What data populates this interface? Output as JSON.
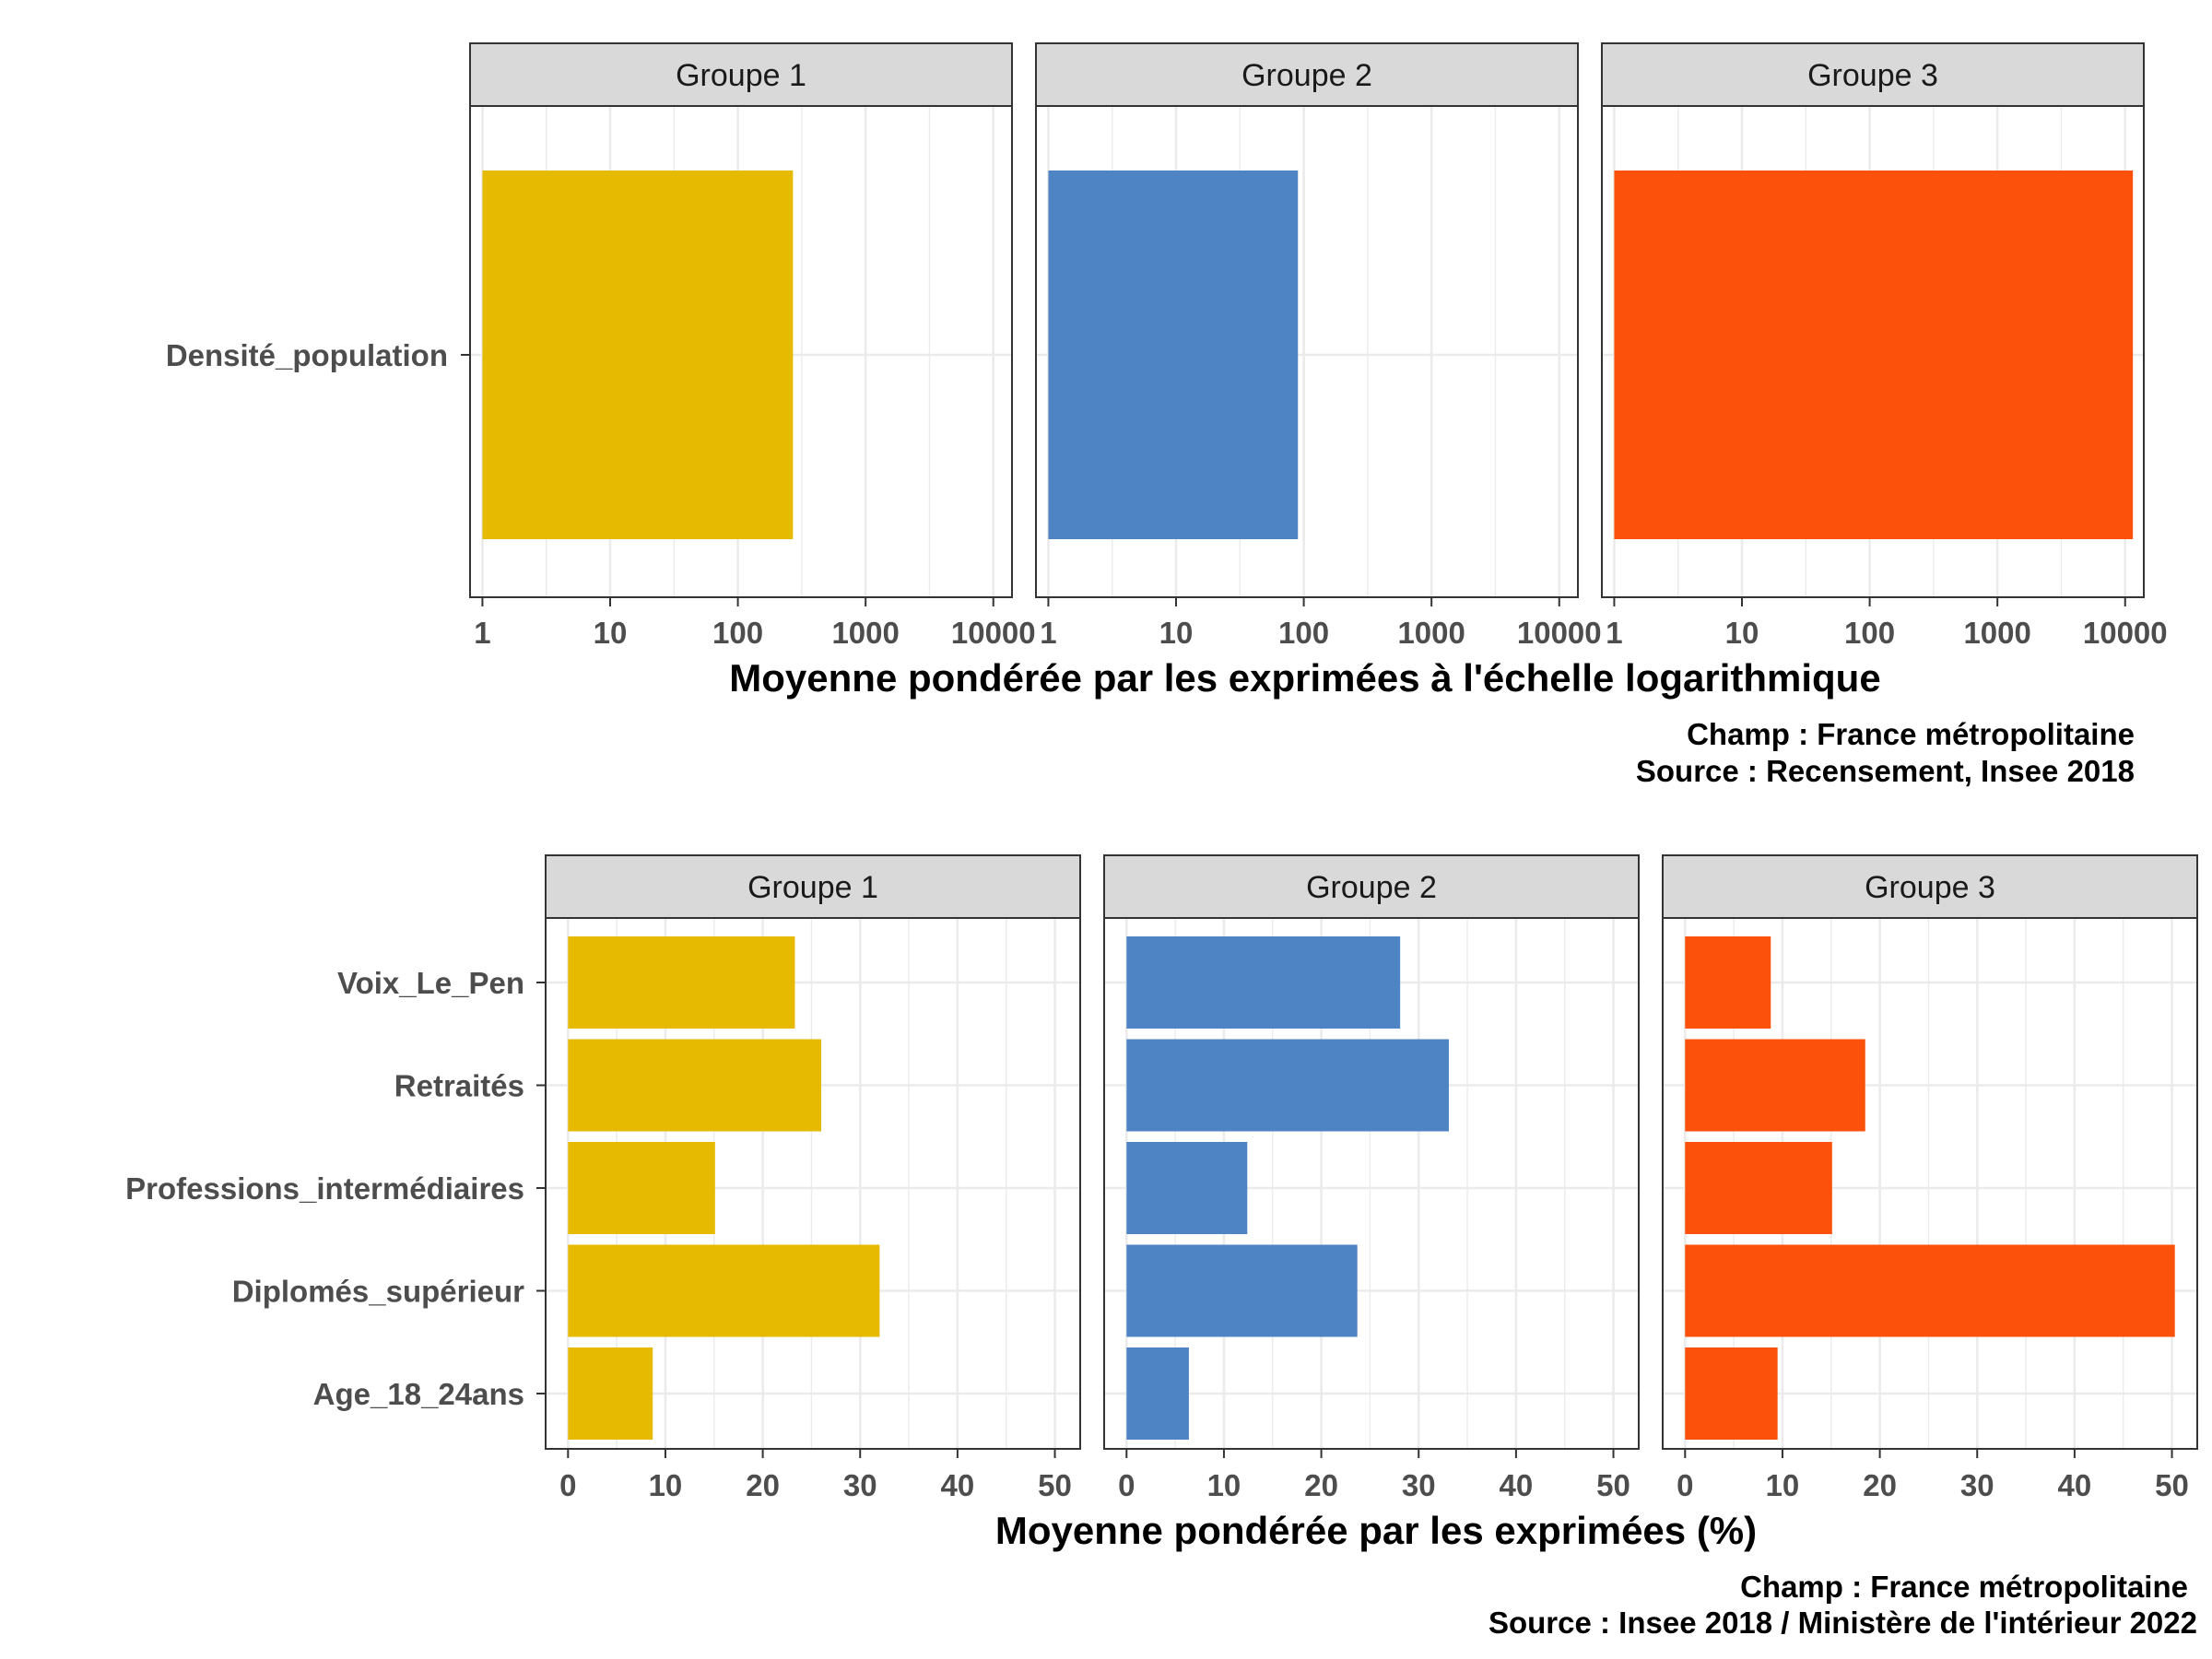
{
  "chart_data": [
    {
      "type": "bar",
      "orientation": "horizontal",
      "facets": [
        "Groupe 1",
        "Groupe 2",
        "Groupe 3"
      ],
      "categories": [
        "Densité_population"
      ],
      "series": [
        {
          "facet": "Groupe 1",
          "values": [
            270
          ],
          "color": "#E6BA00"
        },
        {
          "facet": "Groupe 2",
          "values": [
            90
          ],
          "color": "#4F84C4"
        },
        {
          "facet": "Groupe 3",
          "values": [
            11500
          ],
          "color": "#FC510B"
        }
      ],
      "x_scale": "log10",
      "xlim": [
        0.8,
        14000
      ],
      "x_ticks": [
        1,
        10,
        100,
        1000,
        10000
      ],
      "x_tick_labels": [
        "1",
        "10",
        "100",
        "1000",
        "10000"
      ],
      "xlabel": "Moyenne pondérée par les exprimées à l'échelle logarithmique",
      "caption": [
        "Champ : France métropolitaine",
        "Source : Recensement, Insee 2018"
      ],
      "grid": true,
      "legend": "none"
    },
    {
      "type": "bar",
      "orientation": "horizontal",
      "facets": [
        "Groupe 1",
        "Groupe 2",
        "Groupe 3"
      ],
      "categories": [
        "Voix_Le_Pen",
        "Retraités",
        "Professions_intermédiaires",
        "Diplomés_supérieur",
        "Age_18_24ans"
      ],
      "series": [
        {
          "facet": "Groupe 1",
          "values": [
            23.3,
            26.0,
            15.1,
            32.0,
            8.7
          ],
          "color": "#E6BA00"
        },
        {
          "facet": "Groupe 2",
          "values": [
            28.1,
            33.1,
            12.4,
            23.7,
            6.4
          ],
          "color": "#4F84C4"
        },
        {
          "facet": "Groupe 3",
          "values": [
            8.8,
            18.5,
            15.1,
            50.3,
            9.5
          ],
          "color": "#FC510B"
        }
      ],
      "x_scale": "linear",
      "xlim": [
        -2.3,
        52.6
      ],
      "x_ticks": [
        0,
        10,
        20,
        30,
        40,
        50
      ],
      "x_tick_labels": [
        "0",
        "10",
        "20",
        "30",
        "40",
        "50"
      ],
      "xlabel": "Moyenne pondérée par les exprimées (%)",
      "caption": [
        "Champ : France métropolitaine",
        "Source : Insee 2018 / Ministère de l'intérieur 2022"
      ],
      "grid": true,
      "legend": "none"
    }
  ]
}
